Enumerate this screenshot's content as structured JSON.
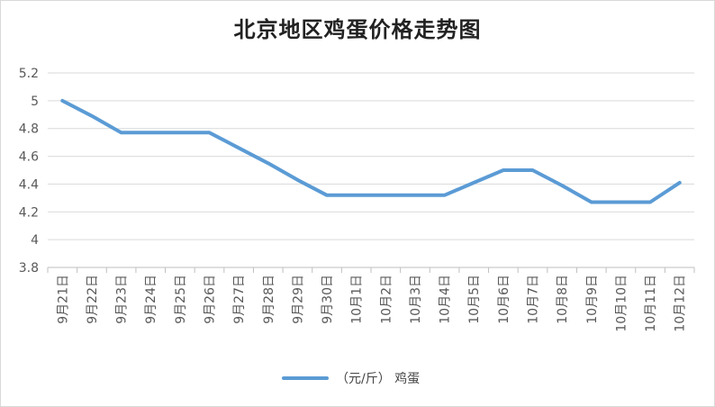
{
  "chart_data": {
    "type": "line",
    "title": "北京地区鸡蛋价格走势图",
    "xlabel": "",
    "ylabel": "",
    "ylim": [
      3.8,
      5.2
    ],
    "yticks": [
      "5.2",
      "5",
      "4.8",
      "4.6",
      "4.4",
      "4.2",
      "4",
      "3.8"
    ],
    "ytick_values": [
      5.2,
      5.0,
      4.8,
      4.6,
      4.4,
      4.2,
      4.0,
      3.8
    ],
    "categories": [
      "9月21日",
      "9月22日",
      "9月23日",
      "9月24日",
      "9月25日",
      "9月26日",
      "9月27日",
      "9月28日",
      "9月29日",
      "9月30日",
      "10月1日",
      "10月2日",
      "10月3日",
      "10月4日",
      "10月5日",
      "10月6日",
      "10月7日",
      "10月8日",
      "10月9日",
      "10月10日",
      "10月11日",
      "10月12日"
    ],
    "series": [
      {
        "name": "（元/斤） 鸡蛋",
        "color": "#5b9bd5",
        "values": [
          5.0,
          4.89,
          4.77,
          4.77,
          4.77,
          4.77,
          4.66,
          4.55,
          4.43,
          4.32,
          4.32,
          4.32,
          4.32,
          4.32,
          4.41,
          4.5,
          4.5,
          4.39,
          4.27,
          4.27,
          4.27,
          4.41
        ]
      }
    ],
    "grid": true,
    "legend_position": "bottom"
  }
}
